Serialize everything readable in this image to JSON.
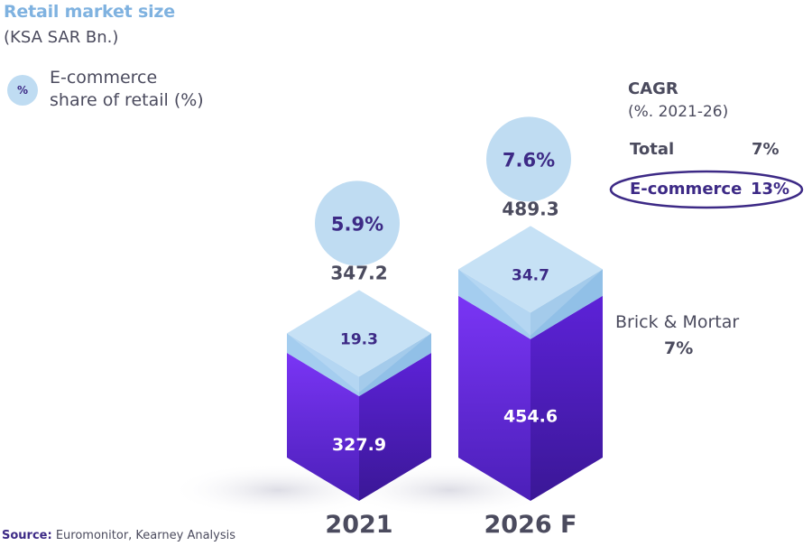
{
  "chart_data": {
    "type": "bar",
    "title": "Retail market size",
    "unit": "(KSA SAR Bn.)",
    "legend": {
      "symbol": "%",
      "label_line1": "E-commerce",
      "label_line2": "share of retail (%)"
    },
    "categories": [
      "2021",
      "2026 F"
    ],
    "series": [
      {
        "name": "Brick & Mortar",
        "values": [
          327.9,
          454.6
        ]
      },
      {
        "name": "E-commerce",
        "values": [
          19.3,
          34.7
        ]
      }
    ],
    "total_labels": [
      "347.2",
      "489.3"
    ],
    "bm_labels": [
      "327.9",
      "454.6"
    ],
    "ecom_labels": [
      "19.3",
      "34.7"
    ],
    "share_labels": [
      "5.9%",
      "7.6%"
    ],
    "cagr": {
      "heading": "CAGR",
      "subheading": "(%. 2021-26)",
      "total_label": "Total",
      "total_value": "7%",
      "ecom_label": "E-commerce",
      "ecom_value": "13%",
      "bm_label": "Brick & Mortar",
      "bm_value": "7%"
    },
    "colors": {
      "brick_mortar": "#6f2df0",
      "ecommerce": "#a8d0ee",
      "share_bubble": "#bfdcf2",
      "dark": "#3d2a86",
      "text": "#4b4b5e"
    }
  },
  "source": {
    "label": "Source:",
    "text": "Euromonitor, Kearney Analysis"
  }
}
